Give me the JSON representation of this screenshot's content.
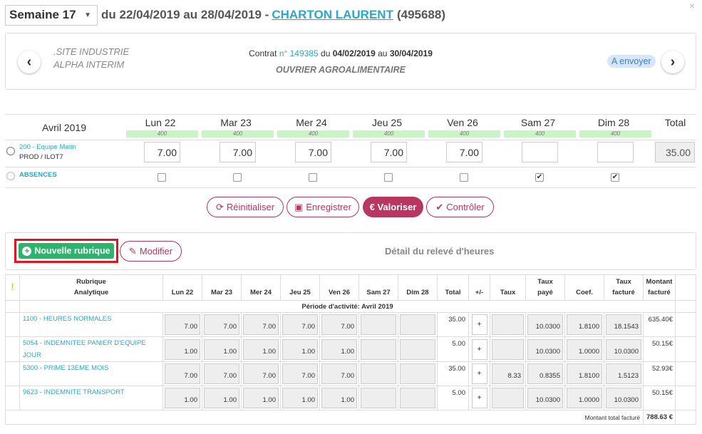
{
  "header": {
    "week_select": "Semaine 17",
    "period": "du 22/04/2019 au 28/04/2019 -",
    "person_name": "CHARTON LAURENT",
    "person_id": "(495688)",
    "close": "×"
  },
  "contract": {
    "site_line1": ".SITE INDUSTRIE",
    "site_line2": "ALPHA INTERIM",
    "contract_prefix": "Contrat",
    "contract_no": "n° 149385",
    "contract_du": "du",
    "date_start": "04/02/2019",
    "contract_au": "au",
    "date_end": "30/04/2019",
    "job": "OUVRIER AGROALIMENTAIRE",
    "status": "A envoyer",
    "prev": "‹",
    "next": "›"
  },
  "grid": {
    "month": "Avril 2019",
    "total_label": "Total",
    "days": [
      {
        "label": "Lun 22",
        "bar": "400",
        "hours": "7.00",
        "absence": false
      },
      {
        "label": "Mar 23",
        "bar": "400",
        "hours": "7.00",
        "absence": false
      },
      {
        "label": "Mer 24",
        "bar": "400",
        "hours": "7.00",
        "absence": false
      },
      {
        "label": "Jeu 25",
        "bar": "400",
        "hours": "7.00",
        "absence": false
      },
      {
        "label": "Ven 26",
        "bar": "400",
        "hours": "7.00",
        "absence": false
      },
      {
        "label": "Sam 27",
        "bar": "400",
        "hours": "",
        "absence": true
      },
      {
        "label": "Dim 28",
        "bar": "400",
        "hours": "",
        "absence": true
      }
    ],
    "shift_name": "200 - Equipe Matin",
    "shift_sub": "PROD / ILOT7",
    "total_hours": "35.00",
    "absences_label": "ABSENCES"
  },
  "actions": {
    "reset": "Réinitialiser",
    "save": "Enregistrer",
    "valorize": "€ Valoriser",
    "check": "Contrôler"
  },
  "detail": {
    "new_button": "Nouvelle rubrique",
    "modify_button": "Modifier",
    "title": "Détail du relevé d'heures"
  },
  "table": {
    "headers": {
      "rubrique1": "Rubrique",
      "rubrique2": "Analytique",
      "lun": "Lun 22",
      "mar": "Mar 23",
      "mer": "Mer 24",
      "jeu": "Jeu 25",
      "ven": "Ven 26",
      "sam": "Sam 27",
      "dim": "Dim 28",
      "total": "Total",
      "pm": "+/-",
      "taux": "Taux",
      "taux_paye1": "Taux",
      "taux_paye2": "payé",
      "coef": "Coef.",
      "taux_facture1": "Taux",
      "taux_facture2": "facturé",
      "montant1": "Montant",
      "montant2": "facturé"
    },
    "warning": "!",
    "period_label": "Période d'activité: Avril 2019",
    "rows": [
      {
        "name": "1100 - HEURES NORMALES",
        "days": [
          "7.00",
          "7.00",
          "7.00",
          "7.00",
          "7.00",
          "",
          ""
        ],
        "total": "35.00",
        "taux": "",
        "taux_paye": "10.0300",
        "coef": "1.8100",
        "taux_facture": "18.1543",
        "montant": "635.40€"
      },
      {
        "name": "5054 - INDEMNITEE PANIER D'EQUIPE JOUR",
        "days": [
          "1.00",
          "1.00",
          "1.00",
          "1.00",
          "1.00",
          "",
          ""
        ],
        "total": "5.00",
        "taux": "",
        "taux_paye": "10.0300",
        "coef": "1.0000",
        "taux_facture": "10.0300",
        "montant": "50.15€"
      },
      {
        "name": "5300 - PRIME 13EME MOIS",
        "days": [
          "7.00",
          "7.00",
          "7.00",
          "7.00",
          "7.00",
          "",
          ""
        ],
        "total": "35.00",
        "taux": "8.33",
        "taux_paye": "0.8355",
        "coef": "1.8100",
        "taux_facture": "1.5123",
        "montant": "52.93€"
      },
      {
        "name": "9623 - INDEMNITE TRANSPORT",
        "days": [
          "1.00",
          "1.00",
          "1.00",
          "1.00",
          "1.00",
          "",
          ""
        ],
        "total": "5.00",
        "taux": "",
        "taux_paye": "10.0300",
        "coef": "1.0000",
        "taux_facture": "10.0300",
        "montant": "50.15€"
      }
    ],
    "plus": "+",
    "total_label": "Montant total facturé",
    "total_value": "788.63 €"
  },
  "colors": {
    "accent": "#b8365f",
    "link": "#29a8c9",
    "green": "#2db36c",
    "highlight": "#e3141e"
  }
}
